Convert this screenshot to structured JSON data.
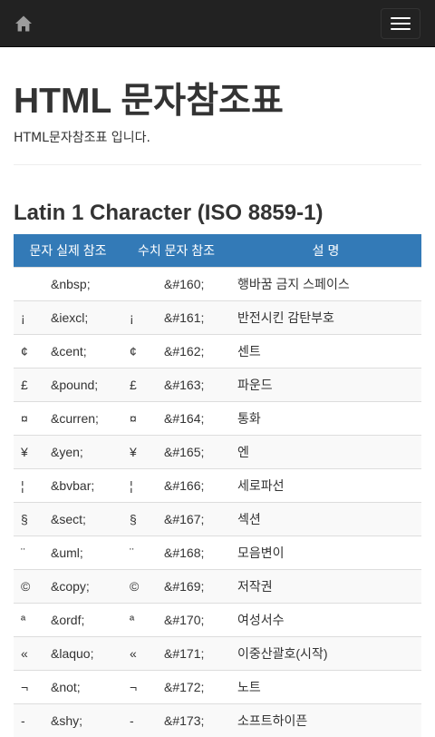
{
  "navbar": {
    "home_icon": "home-icon",
    "menu_icon": "hamburger-menu-icon"
  },
  "header": {
    "title": "HTML 문자참조표",
    "description": "HTML문자참조표 입니다."
  },
  "section": {
    "title": "Latin 1 Character (ISO 8859-1)"
  },
  "table": {
    "header_color": "#337ab7",
    "headers": {
      "entity": "문자 실제 참조",
      "numeric": "수치 문자 참조",
      "description": "설 명"
    },
    "rows": [
      {
        "char1": "",
        "entity": "&nbsp;",
        "char2": "",
        "numeric": "&#160;",
        "description": "행바꿈 금지 스페이스"
      },
      {
        "char1": "¡",
        "entity": "&iexcl;",
        "char2": "¡",
        "numeric": "&#161;",
        "description": "반전시킨 감탄부호"
      },
      {
        "char1": "¢",
        "entity": "&cent;",
        "char2": "¢",
        "numeric": "&#162;",
        "description": "센트"
      },
      {
        "char1": "£",
        "entity": "&pound;",
        "char2": "£",
        "numeric": "&#163;",
        "description": "파운드"
      },
      {
        "char1": "¤",
        "entity": "&curren;",
        "char2": "¤",
        "numeric": "&#164;",
        "description": "통화"
      },
      {
        "char1": "¥",
        "entity": "&yen;",
        "char2": "¥",
        "numeric": "&#165;",
        "description": "엔"
      },
      {
        "char1": "¦",
        "entity": "&bvbar;",
        "char2": "¦",
        "numeric": "&#166;",
        "description": "세로파선"
      },
      {
        "char1": "§",
        "entity": "&sect;",
        "char2": "§",
        "numeric": "&#167;",
        "description": "섹션"
      },
      {
        "char1": "¨",
        "entity": "&uml;",
        "char2": "¨",
        "numeric": "&#168;",
        "description": "모음변이"
      },
      {
        "char1": "©",
        "entity": "&copy;",
        "char2": "©",
        "numeric": "&#169;",
        "description": "저작권"
      },
      {
        "char1": "ª",
        "entity": "&ordf;",
        "char2": "ª",
        "numeric": "&#170;",
        "description": "여성서수"
      },
      {
        "char1": "«",
        "entity": "&laquo;",
        "char2": "«",
        "numeric": "&#171;",
        "description": "이중산괄호(시작)"
      },
      {
        "char1": "¬",
        "entity": "&not;",
        "char2": "¬",
        "numeric": "&#172;",
        "description": "노트"
      },
      {
        "char1": "-",
        "entity": "&shy;",
        "char2": "-",
        "numeric": "&#173;",
        "description": "소프트하이픈"
      }
    ]
  }
}
